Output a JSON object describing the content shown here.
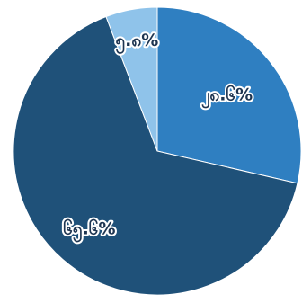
{
  "chart_data": {
    "type": "pie",
    "title": "",
    "start": "12 o'clock",
    "direction": "clockwise",
    "slices": [
      {
        "value": 28.6,
        "label": "၂၈.၆%",
        "color": "#2f7fc1"
      },
      {
        "value": 65.6,
        "label": "၆၅.၆%",
        "color": "#1f5179"
      },
      {
        "value": 5.8,
        "label": "၅.၈%",
        "color": "#8fc3ea"
      }
    ]
  }
}
